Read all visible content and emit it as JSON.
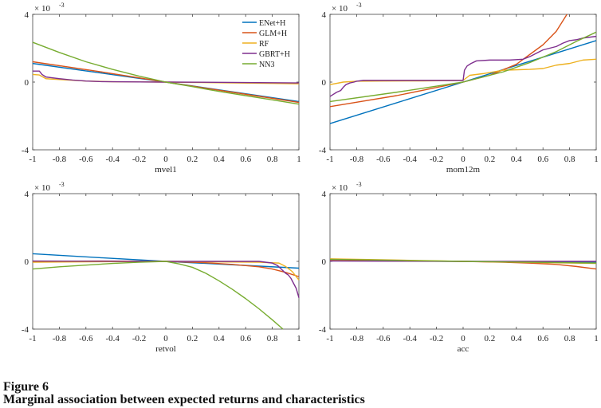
{
  "figure": {
    "number": "Figure 6",
    "title": "Marginal association between expected returns and characteristics"
  },
  "colors": {
    "ENet+H": "#0072bd",
    "GLM+H": "#d95319",
    "RF": "#edb120",
    "GBRT+H": "#7e2f8e",
    "NN3": "#77ac30"
  },
  "chart_data": [
    {
      "type": "line",
      "xlabel": "mvel1",
      "ylabel": "",
      "exponent_label": "× 10",
      "exponent_power": "-3",
      "xlim": [
        -1,
        1
      ],
      "ylim": [
        -4,
        4
      ],
      "xticks": [
        -1,
        -0.8,
        -0.6,
        -0.4,
        -0.2,
        0,
        0.2,
        0.4,
        0.6,
        0.8,
        1
      ],
      "xtick_labels": [
        "-1",
        "-0.8",
        "-0.6",
        "-0.4",
        "-0.2",
        "0",
        "0.2",
        "0.4",
        "0.6",
        "0.8",
        "1"
      ],
      "yticks": [
        -4,
        0,
        4
      ],
      "ytick_labels": [
        "-4",
        "0",
        "4"
      ],
      "legend": {
        "placement": "top-right",
        "entries": [
          "ENet+H",
          "GLM+H",
          "RF",
          "GBRT+H",
          "NN3"
        ]
      },
      "series": [
        {
          "name": "ENet+H",
          "x": [
            -1,
            0,
            1
          ],
          "y": [
            1.1,
            0,
            -1.15
          ]
        },
        {
          "name": "GLM+H",
          "x": [
            -1,
            -0.5,
            0,
            0.5,
            1
          ],
          "y": [
            1.2,
            0.62,
            0,
            -0.6,
            -1.2
          ]
        },
        {
          "name": "RF",
          "x": [
            -1,
            -0.95,
            -0.9,
            -0.8,
            -0.6,
            -0.4,
            -0.2,
            0,
            0.2,
            0.5,
            0.8,
            1
          ],
          "y": [
            0.45,
            0.42,
            0.2,
            0.15,
            0.06,
            0.02,
            0.01,
            0,
            -0.02,
            -0.05,
            -0.08,
            -0.1
          ]
        },
        {
          "name": "GBRT+H",
          "x": [
            -1,
            -0.95,
            -0.93,
            -0.9,
            -0.85,
            -0.8,
            -0.7,
            -0.6,
            -0.5,
            -0.4,
            -0.2,
            0,
            0.5,
            1
          ],
          "y": [
            0.65,
            0.65,
            0.45,
            0.3,
            0.25,
            0.2,
            0.12,
            0.06,
            0.03,
            0.02,
            0.01,
            0,
            -0.02,
            -0.05
          ]
        },
        {
          "name": "NN3",
          "x": [
            -1,
            -0.8,
            -0.6,
            -0.4,
            -0.2,
            0,
            0.2,
            0.4,
            0.6,
            0.8,
            1
          ],
          "y": [
            2.35,
            1.75,
            1.2,
            0.75,
            0.35,
            0,
            -0.27,
            -0.55,
            -0.8,
            -1.05,
            -1.3
          ]
        }
      ]
    },
    {
      "type": "line",
      "xlabel": "mom12m",
      "ylabel": "",
      "exponent_label": "× 10",
      "exponent_power": "-3",
      "xlim": [
        -1,
        1
      ],
      "ylim": [
        -4,
        4
      ],
      "xticks": [
        -1,
        -0.8,
        -0.6,
        -0.4,
        -0.2,
        0,
        0.2,
        0.4,
        0.6,
        0.8,
        1
      ],
      "xtick_labels": [
        "-1",
        "-0.8",
        "-0.6",
        "-0.4",
        "-0.2",
        "0",
        "0.2",
        "0.4",
        "0.6",
        "0.8",
        "1"
      ],
      "yticks": [
        -4,
        0,
        4
      ],
      "ytick_labels": [
        "-4",
        "0",
        "4"
      ],
      "series": [
        {
          "name": "ENet+H",
          "x": [
            -1,
            0,
            1
          ],
          "y": [
            -2.45,
            0,
            2.45
          ]
        },
        {
          "name": "GLM+H",
          "x": [
            -1,
            -0.5,
            0,
            0.2,
            0.4,
            0.6,
            0.7,
            0.78
          ],
          "y": [
            -1.45,
            -0.8,
            0,
            0.4,
            1.05,
            2.2,
            3.0,
            4.0
          ]
        },
        {
          "name": "RF",
          "x": [
            -1,
            -0.9,
            -0.8,
            -0.6,
            -0.3,
            0,
            0.05,
            0.15,
            0.3,
            0.5,
            0.6,
            0.7,
            0.8,
            0.9,
            1
          ],
          "y": [
            -0.15,
            0.0,
            0.05,
            0.06,
            0.07,
            0.1,
            0.4,
            0.5,
            0.7,
            0.75,
            0.8,
            1.0,
            1.1,
            1.3,
            1.35
          ]
        },
        {
          "name": "GBRT+H",
          "x": [
            -1,
            -0.98,
            -0.95,
            -0.92,
            -0.9,
            -0.88,
            -0.85,
            -0.82,
            -0.8,
            -0.75,
            -0.6,
            -0.3,
            0,
            0.01,
            0.03,
            0.06,
            0.1,
            0.2,
            0.35,
            0.45,
            0.5,
            0.6,
            0.7,
            0.75,
            0.8,
            0.85,
            0.9,
            1
          ],
          "y": [
            -0.85,
            -0.75,
            -0.6,
            -0.5,
            -0.3,
            -0.15,
            -0.05,
            0.0,
            0.05,
            0.1,
            0.1,
            0.1,
            0.1,
            0.7,
            0.95,
            1.1,
            1.25,
            1.3,
            1.3,
            1.35,
            1.5,
            1.9,
            2.1,
            2.3,
            2.45,
            2.5,
            2.6,
            2.7
          ]
        },
        {
          "name": "NN3",
          "x": [
            -1,
            -0.5,
            0,
            0.3,
            0.5,
            0.7,
            0.85,
            1
          ],
          "y": [
            -1.15,
            -0.6,
            0,
            0.6,
            1.15,
            1.8,
            2.4,
            2.95
          ]
        }
      ]
    },
    {
      "type": "line",
      "xlabel": "retvol",
      "ylabel": "",
      "exponent_label": "× 10",
      "exponent_power": "-3",
      "xlim": [
        -1,
        1
      ],
      "ylim": [
        -4,
        4
      ],
      "xticks": [
        -1,
        -0.8,
        -0.6,
        -0.4,
        -0.2,
        0,
        0.2,
        0.4,
        0.6,
        0.8,
        1
      ],
      "xtick_labels": [
        "-1",
        "-0.8",
        "-0.6",
        "-0.4",
        "-0.2",
        "0",
        "0.2",
        "0.4",
        "0.6",
        "0.8",
        "1"
      ],
      "yticks": [
        -4,
        0,
        4
      ],
      "ytick_labels": [
        "-4",
        "0",
        "4"
      ],
      "series": [
        {
          "name": "ENet+H",
          "x": [
            -1,
            -0.5,
            0,
            0.5,
            1
          ],
          "y": [
            0.45,
            0.22,
            0,
            -0.2,
            -0.4
          ]
        },
        {
          "name": "GLM+H",
          "x": [
            -1,
            -0.5,
            0,
            0.3,
            0.5,
            0.7,
            0.8,
            0.9,
            1
          ],
          "y": [
            0.0,
            0.02,
            0,
            -0.08,
            -0.18,
            -0.32,
            -0.45,
            -0.65,
            -0.9
          ]
        },
        {
          "name": "RF",
          "x": [
            -1,
            -0.5,
            0,
            0.4,
            0.7,
            0.85,
            0.9,
            0.95,
            1
          ],
          "y": [
            -0.05,
            -0.02,
            0,
            -0.03,
            -0.05,
            -0.1,
            -0.3,
            -0.6,
            -1.1
          ]
        },
        {
          "name": "GBRT+H",
          "x": [
            -1,
            -0.5,
            0,
            0.4,
            0.7,
            0.8,
            0.84,
            0.86,
            0.88,
            0.9,
            0.92,
            0.94,
            0.96,
            0.98,
            1
          ],
          "y": [
            0.02,
            0.01,
            0,
            0.0,
            0.0,
            -0.1,
            -0.25,
            -0.4,
            -0.55,
            -0.7,
            -0.8,
            -1.0,
            -1.3,
            -1.6,
            -2.15
          ]
        },
        {
          "name": "NN3",
          "x": [
            -1,
            -0.8,
            -0.6,
            -0.4,
            -0.2,
            0,
            0.1,
            0.2,
            0.3,
            0.4,
            0.5,
            0.6,
            0.7,
            0.8,
            0.88
          ],
          "y": [
            -0.45,
            -0.32,
            -0.22,
            -0.12,
            -0.05,
            0,
            -0.15,
            -0.35,
            -0.7,
            -1.15,
            -1.65,
            -2.2,
            -2.8,
            -3.45,
            -4.0
          ]
        }
      ]
    },
    {
      "type": "line",
      "xlabel": "acc",
      "ylabel": "",
      "exponent_label": "× 10",
      "exponent_power": "-3",
      "xlim": [
        -1,
        1
      ],
      "ylim": [
        -4,
        4
      ],
      "xticks": [
        -1,
        -0.8,
        -0.6,
        -0.4,
        -0.2,
        0,
        0.2,
        0.4,
        0.6,
        0.8,
        1
      ],
      "xtick_labels": [
        "-1",
        "-0.8",
        "-0.6",
        "-0.4",
        "-0.2",
        "0",
        "0.2",
        "0.4",
        "0.6",
        "0.8",
        "1"
      ],
      "yticks": [
        -4,
        0,
        4
      ],
      "ytick_labels": [
        "-4",
        "0",
        "4"
      ],
      "series": [
        {
          "name": "ENet+H",
          "x": [
            -1,
            0,
            1
          ],
          "y": [
            0.05,
            0,
            -0.05
          ]
        },
        {
          "name": "GLM+H",
          "x": [
            -1,
            -0.5,
            0,
            0.3,
            0.5,
            0.7,
            0.85,
            1
          ],
          "y": [
            0.05,
            0.03,
            0,
            -0.05,
            -0.1,
            -0.18,
            -0.3,
            -0.45
          ]
        },
        {
          "name": "RF",
          "x": [
            -1,
            -0.5,
            0,
            0.5,
            1
          ],
          "y": [
            0.15,
            0.08,
            0,
            -0.06,
            -0.12
          ]
        },
        {
          "name": "GBRT+H",
          "x": [
            -1,
            0,
            1
          ],
          "y": [
            0.02,
            0,
            0.0
          ]
        },
        {
          "name": "NN3",
          "x": [
            -1,
            -0.5,
            0,
            0.5,
            1
          ],
          "y": [
            0.12,
            0.06,
            0,
            -0.05,
            -0.1
          ]
        }
      ]
    }
  ]
}
